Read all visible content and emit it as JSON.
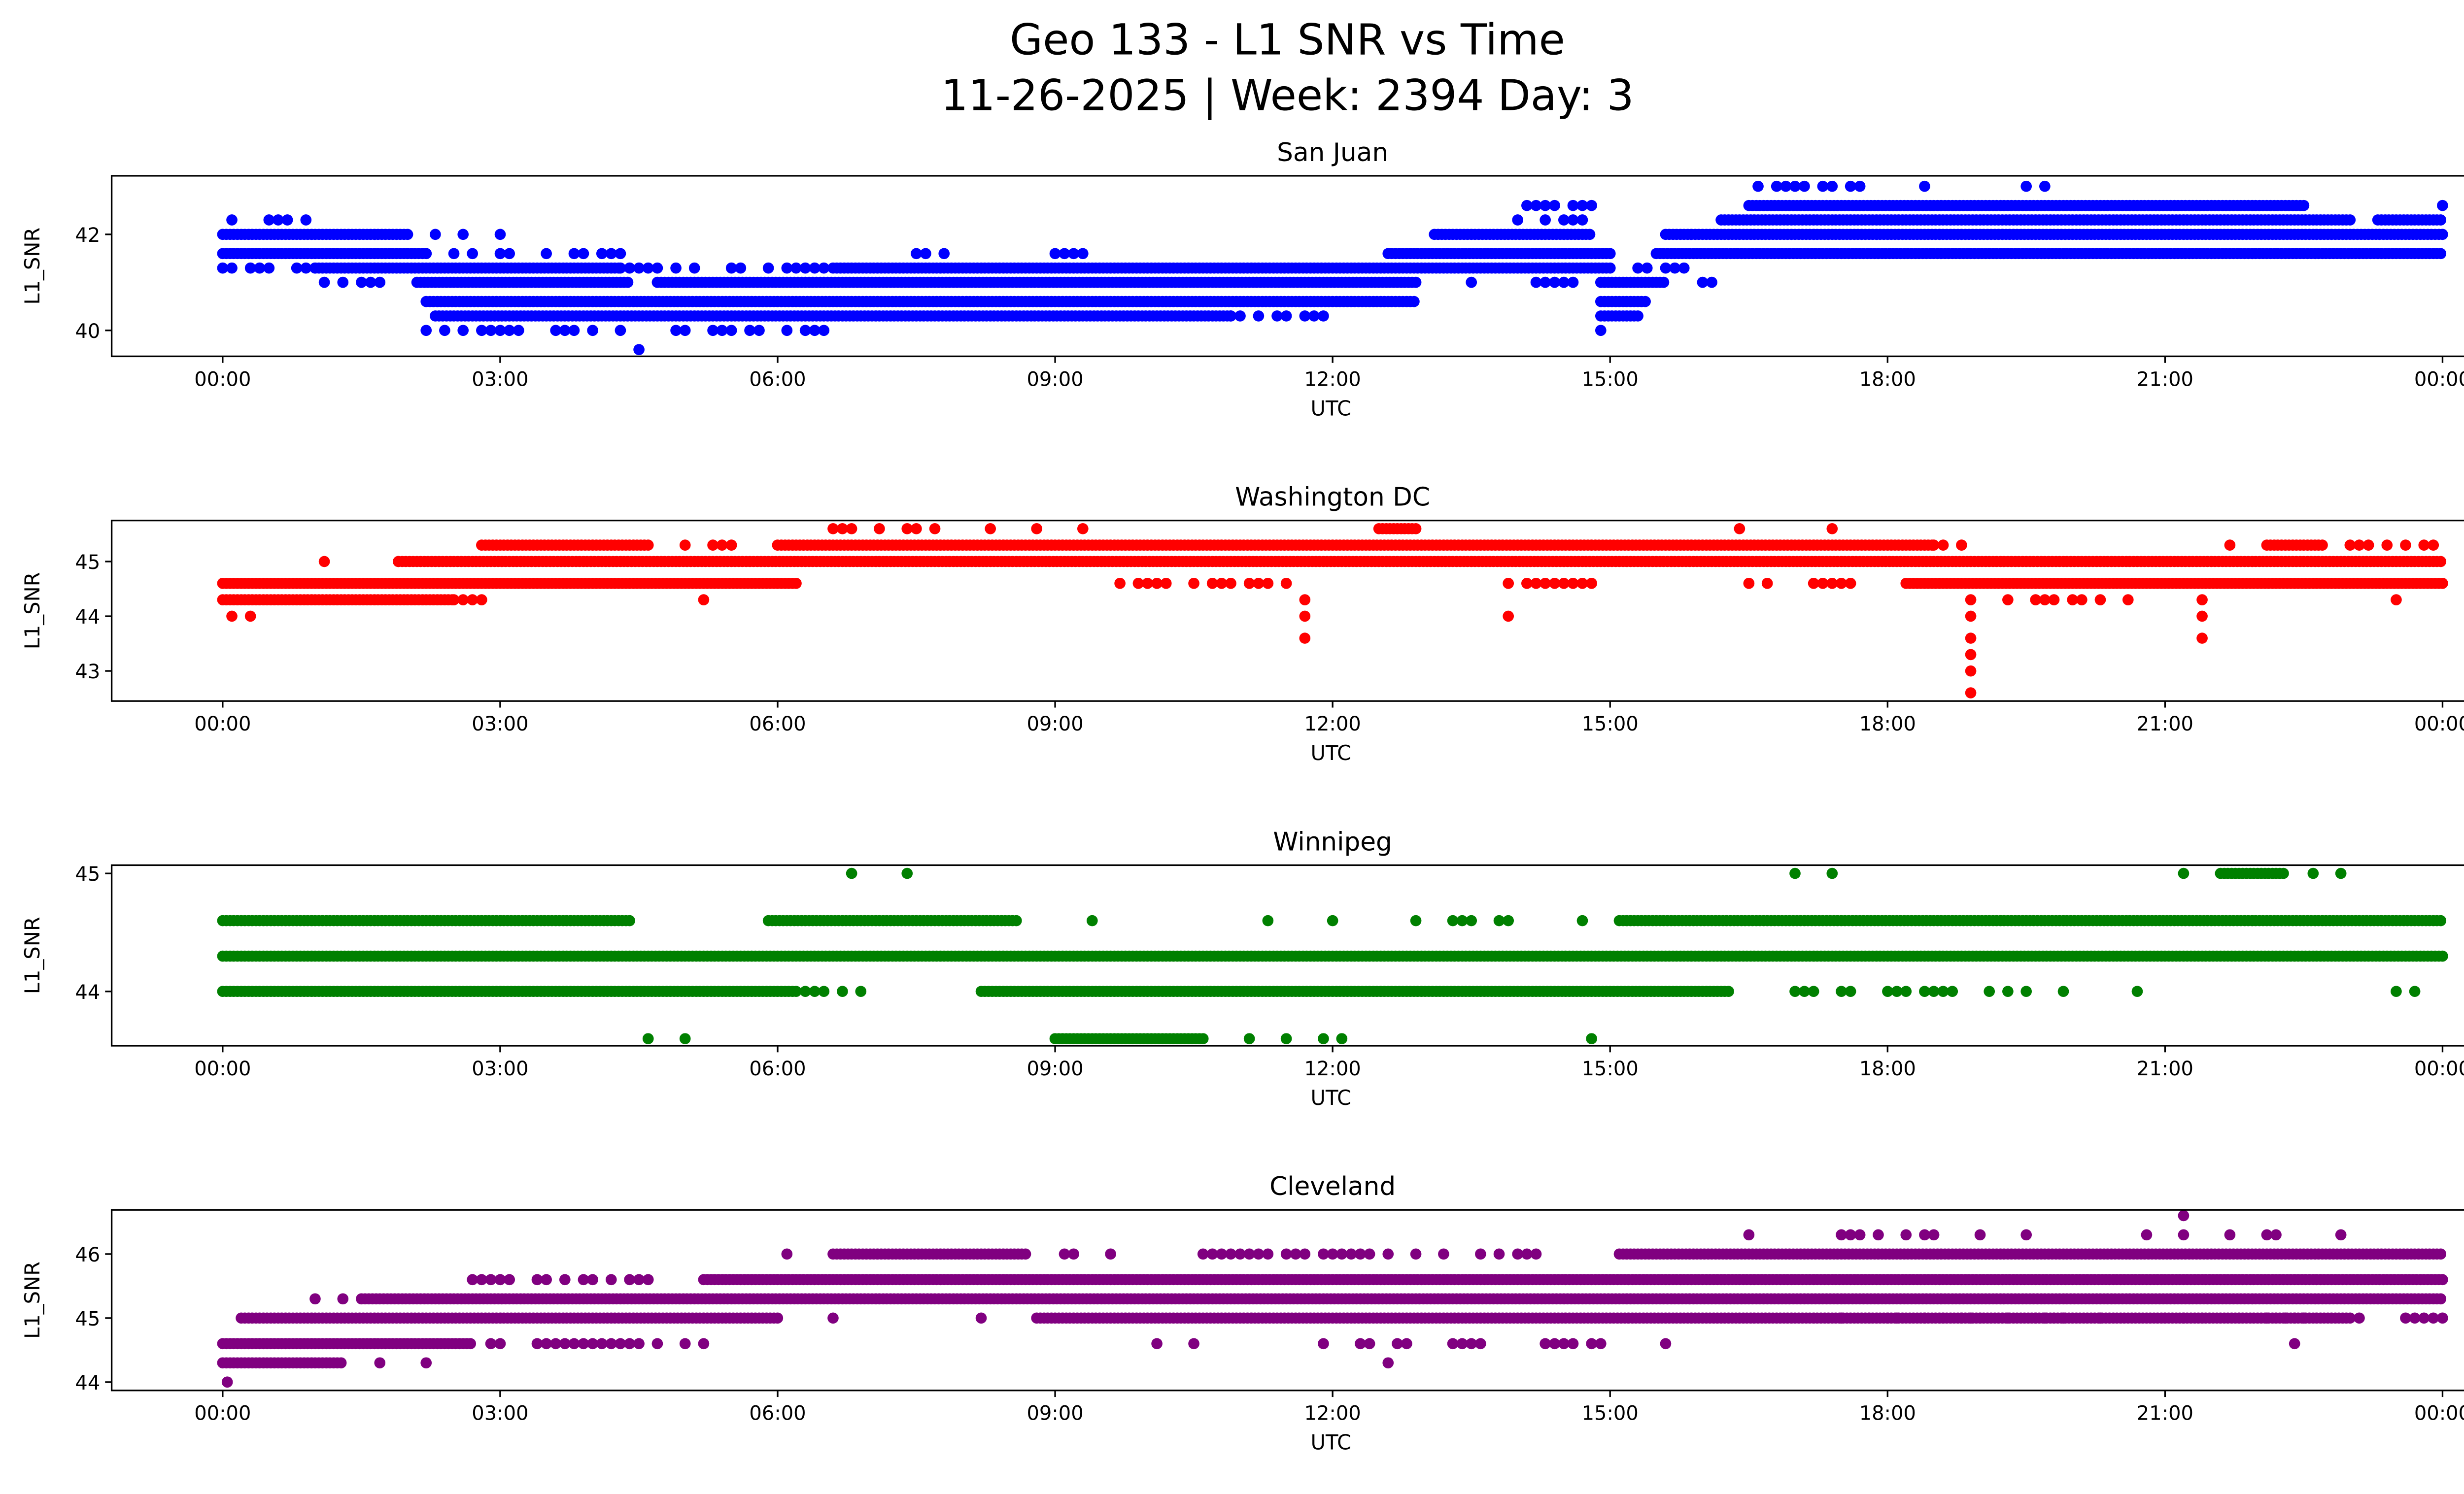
{
  "figure": {
    "title_line1": "Geo 133 - L1 SNR vs Time",
    "title_line2": "11-26-2025 | Week: 2394 Day: 3"
  },
  "chart_data": [
    {
      "type": "scatter",
      "title": "San Juan",
      "xlabel": "UTC",
      "ylabel": "L1_SNR",
      "color": "#0000ff",
      "xlim_hours": [
        -1.2,
        25.2
      ],
      "ylim": [
        39.46,
        43.22
      ],
      "yticks": [
        40,
        42
      ],
      "xticks_hours": [
        0,
        3,
        6,
        9,
        12,
        15,
        18,
        21,
        24
      ],
      "xtick_labels": [
        "00:00",
        "03:00",
        "06:00",
        "09:00",
        "12:00",
        "15:00",
        "18:00",
        "21:00",
        "00:00"
      ],
      "segments": [
        [
          42.3,
          0.1,
          0.1,
          "s"
        ],
        [
          42.3,
          0.5,
          0.9,
          "s"
        ],
        [
          42.0,
          0.0,
          2.0,
          "d"
        ],
        [
          42.0,
          2.3,
          3.0,
          "s"
        ],
        [
          42.0,
          13.1,
          14.8,
          "d"
        ],
        [
          42.0,
          15.6,
          24.0,
          "d"
        ],
        [
          41.6,
          0.0,
          2.2,
          "d"
        ],
        [
          41.6,
          2.2,
          4.3,
          "s"
        ],
        [
          41.6,
          7.5,
          8.0,
          "s"
        ],
        [
          41.6,
          9.0,
          9.3,
          "s"
        ],
        [
          41.6,
          12.6,
          15.0,
          "d"
        ],
        [
          41.6,
          15.5,
          24.0,
          "d"
        ],
        [
          41.3,
          0.0,
          1.0,
          "s"
        ],
        [
          41.3,
          1.0,
          4.3,
          "d"
        ],
        [
          41.3,
          4.3,
          6.6,
          "s"
        ],
        [
          41.3,
          6.6,
          15.0,
          "d"
        ],
        [
          41.3,
          15.3,
          15.8,
          "s"
        ],
        [
          41.0,
          1.1,
          1.7,
          "s"
        ],
        [
          41.0,
          2.1,
          4.4,
          "d"
        ],
        [
          41.0,
          4.7,
          12.9,
          "d"
        ],
        [
          41.0,
          13.5,
          14.6,
          "s"
        ],
        [
          41.0,
          14.9,
          15.6,
          "d"
        ],
        [
          41.0,
          16.0,
          16.1,
          "s"
        ],
        [
          40.6,
          2.2,
          12.9,
          "d"
        ],
        [
          40.6,
          14.9,
          15.4,
          "d"
        ],
        [
          40.3,
          2.3,
          10.9,
          "d"
        ],
        [
          40.3,
          10.9,
          12.2,
          "s"
        ],
        [
          40.3,
          14.9,
          15.3,
          "d"
        ],
        [
          40.0,
          2.2,
          6.5,
          "s"
        ],
        [
          40.0,
          14.9,
          15.0,
          "s"
        ],
        [
          42.3,
          16.2,
          23.0,
          "d"
        ],
        [
          42.3,
          23.3,
          24.0,
          "d"
        ],
        [
          42.3,
          14.0,
          14.9,
          "s"
        ],
        [
          42.6,
          16.5,
          22.5,
          "d"
        ],
        [
          42.6,
          14.1,
          14.8,
          "s"
        ],
        [
          42.6,
          24.0,
          24.0,
          "s"
        ],
        [
          43.0,
          16.6,
          18.6,
          "s"
        ],
        [
          43.0,
          19.5,
          19.7,
          "s"
        ]
      ],
      "points": [
        [
          4.5,
          39.6
        ]
      ]
    },
    {
      "type": "scatter",
      "title": "Washington DC",
      "xlabel": "UTC",
      "ylabel": "L1_SNR",
      "color": "#ff0000",
      "xlim_hours": [
        -1.2,
        25.2
      ],
      "ylim": [
        42.45,
        45.75
      ],
      "yticks": [
        43,
        44,
        45
      ],
      "xticks_hours": [
        0,
        3,
        6,
        9,
        12,
        15,
        18,
        21,
        24
      ],
      "xtick_labels": [
        "00:00",
        "03:00",
        "06:00",
        "09:00",
        "12:00",
        "15:00",
        "18:00",
        "21:00",
        "00:00"
      ],
      "segments": [
        [
          44.3,
          0.0,
          2.5,
          "d"
        ],
        [
          44.3,
          2.5,
          2.8,
          "s"
        ],
        [
          44.3,
          19.3,
          20.3,
          "s"
        ],
        [
          44.6,
          0.0,
          6.2,
          "d"
        ],
        [
          44.6,
          9.7,
          11.5,
          "s"
        ],
        [
          44.6,
          13.9,
          14.9,
          "s"
        ],
        [
          44.6,
          16.5,
          17.6,
          "s"
        ],
        [
          44.6,
          18.2,
          24.0,
          "d"
        ],
        [
          45.0,
          1.1,
          1.9,
          "s"
        ],
        [
          45.0,
          1.9,
          24.0,
          "d"
        ],
        [
          45.3,
          2.8,
          4.6,
          "d"
        ],
        [
          45.3,
          5.0,
          6.0,
          "s"
        ],
        [
          45.3,
          6.0,
          18.5,
          "d"
        ],
        [
          45.3,
          18.5,
          19.0,
          "s"
        ],
        [
          45.3,
          21.7,
          21.7,
          "s"
        ],
        [
          45.3,
          22.1,
          22.7,
          "d"
        ],
        [
          45.3,
          23.0,
          23.9,
          "s"
        ],
        [
          45.6,
          6.6,
          7.7,
          "s"
        ],
        [
          45.6,
          12.5,
          12.9,
          "d"
        ]
      ],
      "points": [
        [
          0.1,
          44.0
        ],
        [
          0.3,
          44.0
        ],
        [
          5.2,
          44.3
        ],
        [
          8.3,
          45.6
        ],
        [
          8.8,
          45.6
        ],
        [
          9.3,
          45.6
        ],
        [
          16.4,
          45.6
        ],
        [
          17.4,
          45.6
        ],
        [
          11.7,
          44.3
        ],
        [
          11.7,
          44.0
        ],
        [
          11.7,
          43.6
        ],
        [
          13.9,
          44.0
        ],
        [
          18.9,
          44.3
        ],
        [
          18.9,
          44.0
        ],
        [
          18.9,
          43.6
        ],
        [
          18.9,
          43.3
        ],
        [
          18.9,
          43.0
        ],
        [
          18.9,
          42.6
        ],
        [
          20.6,
          44.3
        ],
        [
          21.4,
          44.3
        ],
        [
          21.4,
          44.0
        ],
        [
          21.4,
          43.6
        ],
        [
          23.5,
          44.3
        ]
      ]
    },
    {
      "type": "scatter",
      "title": "Winnipeg",
      "xlabel": "UTC",
      "ylabel": "L1_SNR",
      "color": "#008000",
      "xlim_hours": [
        -1.2,
        25.2
      ],
      "ylim": [
        43.54,
        45.07
      ],
      "yticks": [
        44,
        45
      ],
      "xticks_hours": [
        0,
        3,
        6,
        9,
        12,
        15,
        18,
        21,
        24
      ],
      "xtick_labels": [
        "00:00",
        "03:00",
        "06:00",
        "09:00",
        "12:00",
        "15:00",
        "18:00",
        "21:00",
        "00:00"
      ],
      "segments": [
        [
          44.3,
          0.0,
          24.0,
          "d"
        ],
        [
          44.6,
          0.0,
          4.4,
          "d"
        ],
        [
          44.6,
          5.9,
          8.6,
          "d"
        ],
        [
          44.6,
          13.3,
          14.0,
          "s"
        ],
        [
          44.6,
          15.1,
          24.0,
          "d"
        ],
        [
          44.0,
          0.0,
          6.2,
          "d"
        ],
        [
          44.0,
          6.3,
          6.9,
          "s"
        ],
        [
          44.0,
          8.2,
          16.3,
          "d"
        ],
        [
          44.0,
          17.0,
          20.0,
          "s"
        ],
        [
          44.0,
          23.5,
          23.8,
          "s"
        ],
        [
          43.6,
          9.0,
          10.6,
          "d"
        ],
        [
          43.6,
          11.5,
          12.1,
          "s"
        ],
        [
          45.0,
          21.6,
          22.3,
          "d"
        ],
        [
          45.0,
          22.6,
          22.9,
          "s"
        ]
      ],
      "points": [
        [
          4.6,
          43.6
        ],
        [
          5.0,
          43.6
        ],
        [
          11.1,
          43.6
        ],
        [
          14.8,
          43.6
        ],
        [
          9.4,
          44.6
        ],
        [
          11.3,
          44.6
        ],
        [
          12.0,
          44.6
        ],
        [
          12.9,
          44.6
        ],
        [
          14.7,
          44.6
        ],
        [
          6.8,
          45.0
        ],
        [
          7.4,
          45.0
        ],
        [
          17.0,
          45.0
        ],
        [
          17.4,
          45.0
        ],
        [
          21.2,
          45.0
        ],
        [
          20.7,
          44.0
        ]
      ]
    },
    {
      "type": "scatter",
      "title": "Cleveland",
      "xlabel": "UTC",
      "ylabel": "L1_SNR",
      "color": "#800080",
      "xlim_hours": [
        -1.2,
        25.2
      ],
      "ylim": [
        43.87,
        46.69
      ],
      "yticks": [
        44,
        45,
        46
      ],
      "xticks_hours": [
        0,
        3,
        6,
        9,
        12,
        15,
        18,
        21,
        24
      ],
      "xtick_labels": [
        "00:00",
        "03:00",
        "06:00",
        "09:00",
        "12:00",
        "15:00",
        "18:00",
        "21:00",
        "00:00"
      ],
      "segments": [
        [
          44.3,
          0.0,
          1.3,
          "d"
        ],
        [
          44.6,
          0.0,
          2.7,
          "d"
        ],
        [
          44.6,
          2.9,
          5.9,
          "s"
        ],
        [
          44.6,
          12.3,
          12.8,
          "s"
        ],
        [
          44.6,
          13.3,
          13.6,
          "s"
        ],
        [
          44.6,
          14.3,
          14.9,
          "s"
        ],
        [
          45.0,
          0.2,
          6.0,
          "d"
        ],
        [
          45.0,
          8.8,
          23.0,
          "d"
        ],
        [
          45.0,
          17.5,
          22.5,
          "s"
        ],
        [
          45.0,
          23.1,
          24.0,
          "s"
        ],
        [
          45.3,
          1.5,
          24.0,
          "d"
        ],
        [
          45.6,
          2.7,
          4.6,
          "s"
        ],
        [
          45.6,
          5.2,
          24.0,
          "d"
        ],
        [
          46.0,
          6.6,
          8.7,
          "d"
        ],
        [
          46.0,
          9.1,
          9.6,
          "s"
        ],
        [
          46.0,
          10.6,
          14.5,
          "s"
        ],
        [
          46.0,
          15.1,
          24.0,
          "d"
        ],
        [
          46.3,
          17.5,
          18.6,
          "s"
        ],
        [
          46.3,
          20.8,
          21.2,
          "s"
        ],
        [
          46.3,
          21.7,
          22.3,
          "s"
        ]
      ],
      "points": [
        [
          0.05,
          44.0
        ],
        [
          1.7,
          44.3
        ],
        [
          2.2,
          44.3
        ],
        [
          12.6,
          44.3
        ],
        [
          10.1,
          44.6
        ],
        [
          10.5,
          44.6
        ],
        [
          11.9,
          44.6
        ],
        [
          15.6,
          44.6
        ],
        [
          22.4,
          44.6
        ],
        [
          6.6,
          45.0
        ],
        [
          8.2,
          45.0
        ],
        [
          1.0,
          45.3
        ],
        [
          1.3,
          45.3
        ],
        [
          6.1,
          46.0
        ],
        [
          16.5,
          46.3
        ],
        [
          19.0,
          46.3
        ],
        [
          19.5,
          46.3
        ],
        [
          22.9,
          46.3
        ],
        [
          21.2,
          46.6
        ]
      ]
    }
  ]
}
